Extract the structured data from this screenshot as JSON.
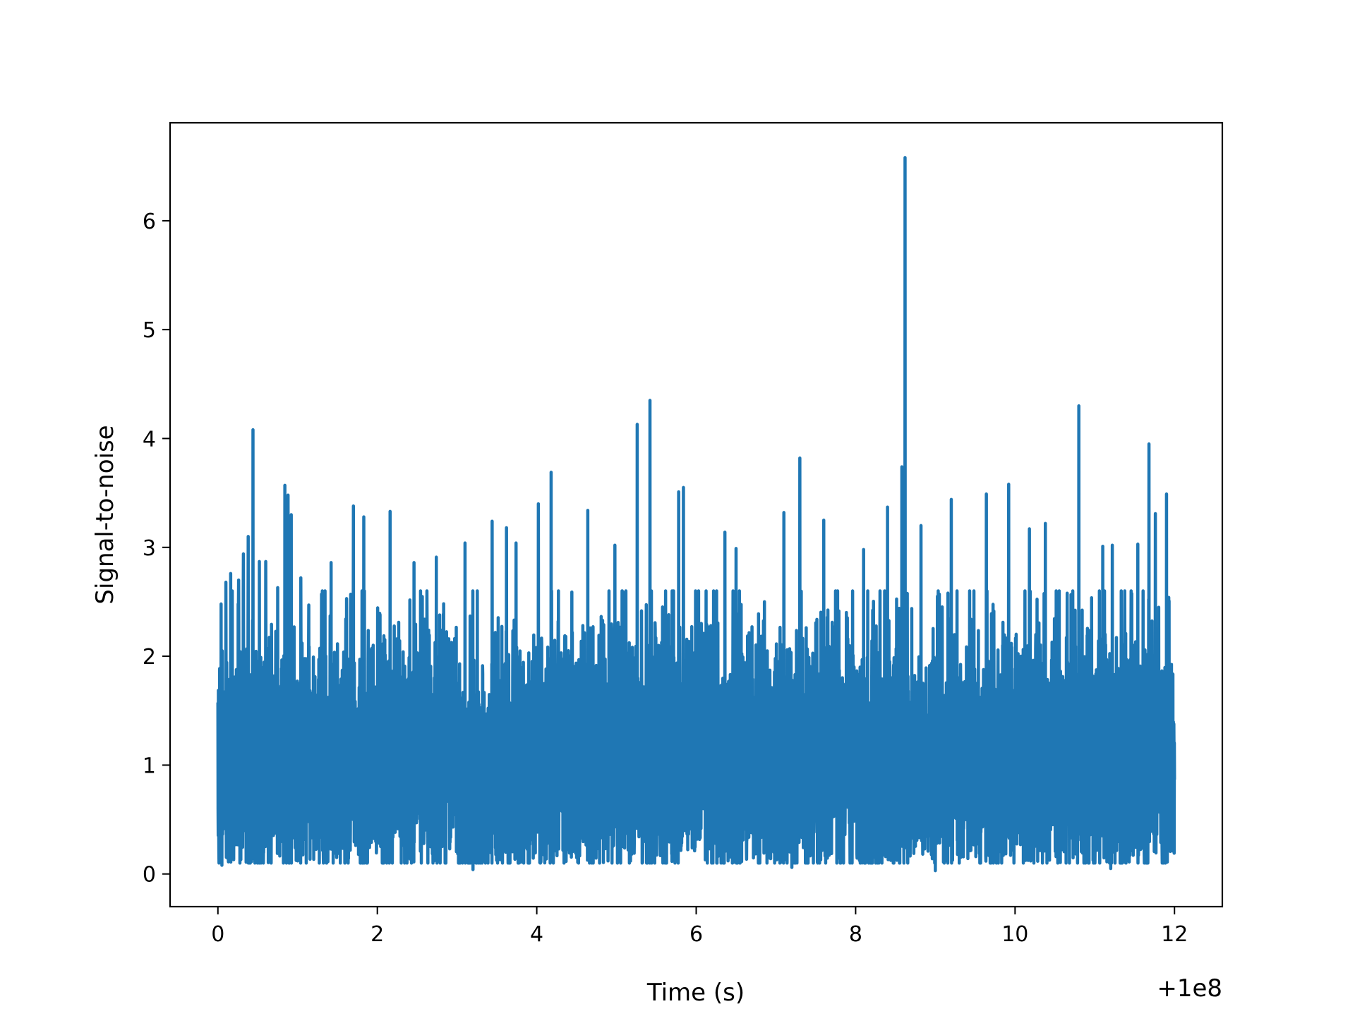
{
  "chart_data": {
    "type": "line",
    "title": "",
    "xlabel": "Time (s)",
    "ylabel": "Signal-to-noise",
    "x_offset_label": "+1e8",
    "xlim": [
      -0.6,
      12.6
    ],
    "ylim": [
      -0.3,
      6.9
    ],
    "xticks": [
      0,
      2,
      4,
      6,
      8,
      10,
      12
    ],
    "xtick_labels": [
      "0",
      "2",
      "4",
      "6",
      "8",
      "10",
      "12"
    ],
    "yticks": [
      0,
      1,
      2,
      3,
      4,
      5,
      6
    ],
    "ytick_labels": [
      "0",
      "1",
      "2",
      "3",
      "4",
      "5",
      "6"
    ],
    "grid": false,
    "line_color": "#1f77b4",
    "x_range": [
      0,
      12
    ],
    "baseline": {
      "mean": 1.0,
      "low": 0.1,
      "typical_high": 2.6
    },
    "peaks": [
      {
        "x": 0.04,
        "y": 2.48
      },
      {
        "x": 0.1,
        "y": 2.68
      },
      {
        "x": 0.16,
        "y": 2.76
      },
      {
        "x": 0.26,
        "y": 2.7
      },
      {
        "x": 0.32,
        "y": 2.94
      },
      {
        "x": 0.38,
        "y": 3.1
      },
      {
        "x": 0.44,
        "y": 4.08
      },
      {
        "x": 0.52,
        "y": 2.87
      },
      {
        "x": 0.6,
        "y": 2.87
      },
      {
        "x": 0.75,
        "y": 2.63
      },
      {
        "x": 0.84,
        "y": 3.57
      },
      {
        "x": 0.88,
        "y": 3.48
      },
      {
        "x": 0.92,
        "y": 3.3
      },
      {
        "x": 1.04,
        "y": 2.72
      },
      {
        "x": 1.3,
        "y": 2.57
      },
      {
        "x": 1.42,
        "y": 2.86
      },
      {
        "x": 1.7,
        "y": 3.38
      },
      {
        "x": 1.83,
        "y": 3.28
      },
      {
        "x": 2.16,
        "y": 3.33
      },
      {
        "x": 2.3,
        "y": 3.22
      },
      {
        "x": 2.46,
        "y": 2.86
      },
      {
        "x": 2.74,
        "y": 2.91
      },
      {
        "x": 3.1,
        "y": 3.04
      },
      {
        "x": 3.44,
        "y": 3.24
      },
      {
        "x": 3.62,
        "y": 3.18
      },
      {
        "x": 3.74,
        "y": 3.04
      },
      {
        "x": 4.02,
        "y": 3.4
      },
      {
        "x": 4.18,
        "y": 3.69
      },
      {
        "x": 4.64,
        "y": 3.34
      },
      {
        "x": 4.98,
        "y": 3.02
      },
      {
        "x": 5.26,
        "y": 4.13
      },
      {
        "x": 5.42,
        "y": 4.35
      },
      {
        "x": 5.78,
        "y": 3.51
      },
      {
        "x": 5.84,
        "y": 3.55
      },
      {
        "x": 6.36,
        "y": 3.14
      },
      {
        "x": 6.5,
        "y": 2.99
      },
      {
        "x": 7.1,
        "y": 3.32
      },
      {
        "x": 7.3,
        "y": 3.82
      },
      {
        "x": 7.6,
        "y": 3.25
      },
      {
        "x": 8.1,
        "y": 2.98
      },
      {
        "x": 8.4,
        "y": 3.37
      },
      {
        "x": 8.58,
        "y": 3.74
      },
      {
        "x": 8.62,
        "y": 6.58
      },
      {
        "x": 8.82,
        "y": 3.2
      },
      {
        "x": 9.2,
        "y": 3.44
      },
      {
        "x": 9.64,
        "y": 3.49
      },
      {
        "x": 9.92,
        "y": 3.58
      },
      {
        "x": 10.18,
        "y": 3.17
      },
      {
        "x": 10.38,
        "y": 3.22
      },
      {
        "x": 10.8,
        "y": 4.3
      },
      {
        "x": 11.1,
        "y": 3.01
      },
      {
        "x": 11.22,
        "y": 3.02
      },
      {
        "x": 11.54,
        "y": 3.03
      },
      {
        "x": 11.68,
        "y": 3.95
      },
      {
        "x": 11.76,
        "y": 3.31
      },
      {
        "x": 11.9,
        "y": 3.49
      }
    ],
    "troughs": [
      {
        "x": 0.05,
        "y": 0.08
      },
      {
        "x": 1.0,
        "y": 0.12
      },
      {
        "x": 2.3,
        "y": 0.1
      },
      {
        "x": 3.2,
        "y": 0.04
      },
      {
        "x": 4.5,
        "y": 0.15
      },
      {
        "x": 6.4,
        "y": 0.12
      },
      {
        "x": 7.2,
        "y": 0.06
      },
      {
        "x": 9.0,
        "y": 0.03
      },
      {
        "x": 10.4,
        "y": 0.1
      },
      {
        "x": 11.2,
        "y": 0.05
      }
    ]
  }
}
